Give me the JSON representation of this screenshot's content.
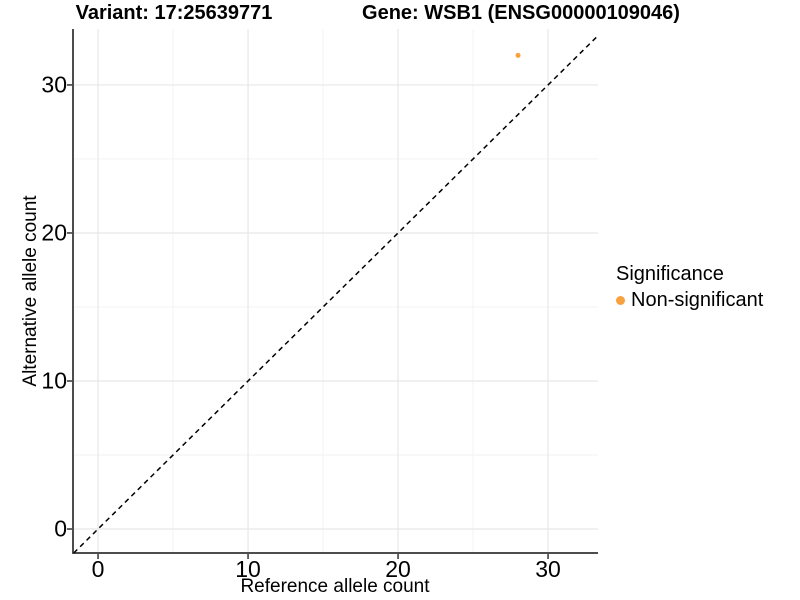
{
  "chart_data": {
    "type": "scatter",
    "titles": [
      "Variant: 17:25639771",
      "Gene: WSB1 (ENSG00000109046)"
    ],
    "xlabel": "Reference allele count",
    "ylabel": "Alternative allele count",
    "xlim": [
      -1.67,
      33.33
    ],
    "ylim": [
      -1.62,
      33.78
    ],
    "xticks": [
      0,
      10,
      20,
      30
    ],
    "yticks": [
      0,
      10,
      20,
      30
    ],
    "xticks_minor": [
      5,
      15,
      25
    ],
    "yticks_minor": [
      5,
      15,
      25
    ],
    "grid": "major+minor",
    "reference_line": {
      "type": "identity",
      "slope": 1,
      "intercept": 0,
      "style": "dashed",
      "color": "#000000"
    },
    "series": [
      {
        "name": "Non-significant",
        "color": "#F8A13E",
        "point_radius": 2.5,
        "points": [
          [
            28,
            32
          ]
        ]
      }
    ],
    "legend": {
      "title": "Significance",
      "position": "right",
      "items": [
        {
          "label": "Non-significant",
          "color": "#F8A13E"
        }
      ]
    },
    "colors": {
      "background": "#ffffff",
      "grid_major": "#e7e7e7",
      "grid_minor": "#f2f2f2",
      "axis_line": "#4d4d4d",
      "tick_mark": "#333333",
      "text": "#000000"
    }
  }
}
